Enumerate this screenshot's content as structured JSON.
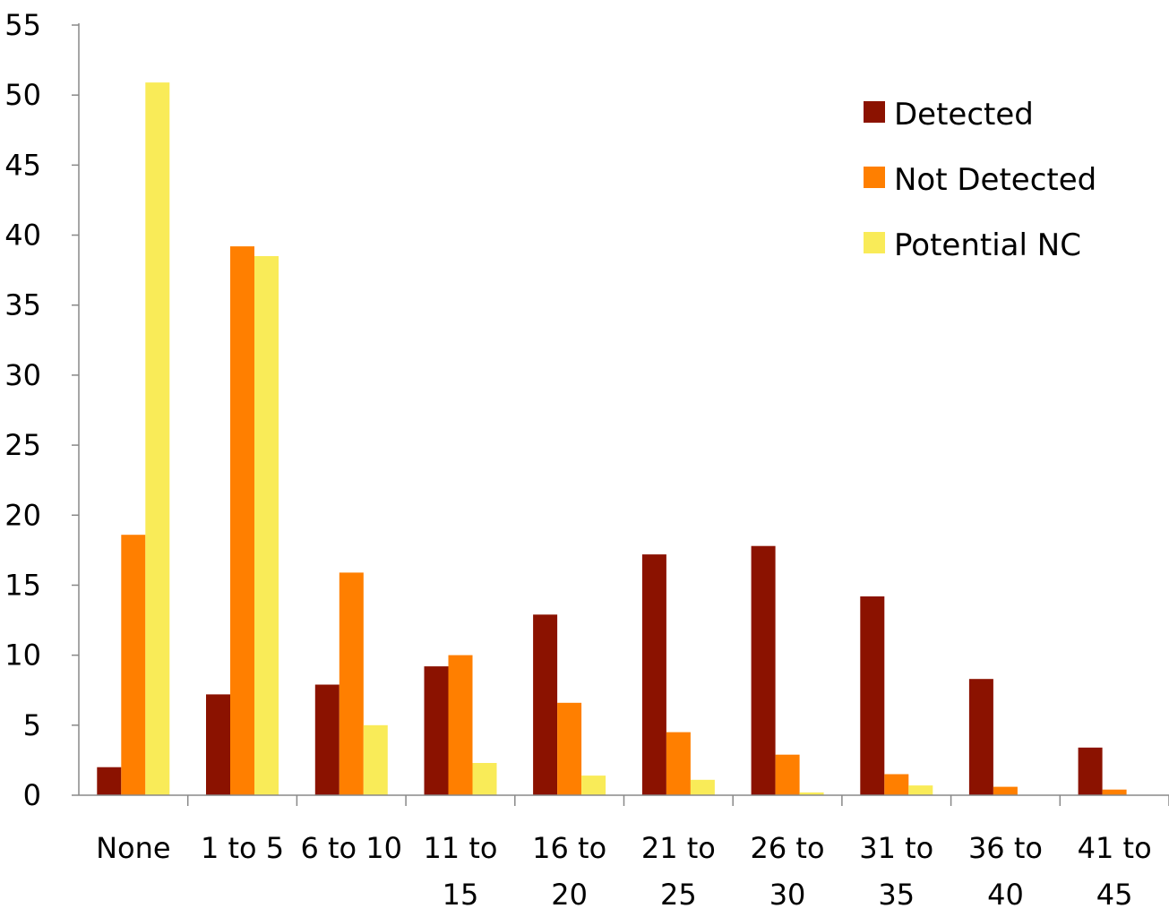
{
  "chart_data": {
    "type": "bar",
    "title": "",
    "xlabel": "",
    "ylabel": "",
    "ylim": [
      0,
      55
    ],
    "yticks": [
      0,
      5,
      10,
      15,
      20,
      25,
      30,
      35,
      40,
      45,
      50,
      55
    ],
    "grid": false,
    "legend_position": "top-right",
    "categories": [
      [
        "None"
      ],
      [
        "1 to 5"
      ],
      [
        "6 to 10"
      ],
      [
        "11 to",
        "15"
      ],
      [
        "16 to",
        "20"
      ],
      [
        "21 to",
        "25"
      ],
      [
        "26 to",
        "30"
      ],
      [
        "31 to",
        "35"
      ],
      [
        "36 to",
        "40"
      ],
      [
        "41 to",
        "45"
      ]
    ],
    "series": [
      {
        "name": "Detected",
        "color": "#8B1200",
        "values": [
          2.0,
          7.2,
          7.9,
          9.2,
          12.9,
          17.2,
          17.8,
          14.2,
          8.3,
          3.4
        ]
      },
      {
        "name": "Not Detected",
        "color": "#FF7F00",
        "values": [
          18.6,
          39.2,
          15.9,
          10.0,
          6.6,
          4.5,
          2.9,
          1.5,
          0.6,
          0.4
        ]
      },
      {
        "name": "Potential NC",
        "color": "#F9EB58",
        "values": [
          50.9,
          38.5,
          5.0,
          2.3,
          1.4,
          1.1,
          0.2,
          0.7,
          0.0,
          0.0
        ]
      }
    ]
  }
}
